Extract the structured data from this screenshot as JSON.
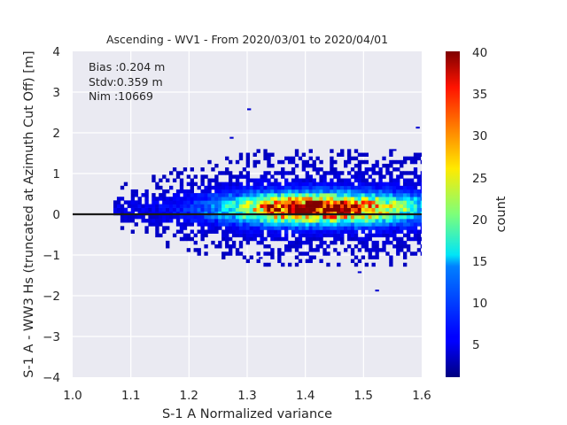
{
  "chart_data": {
    "type": "heatmap",
    "title": "Ascending - WV1 - From 2020/03/01 to 2020/04/01",
    "xlabel": "S-1 A Normalized variance",
    "ylabel": "S-1 A - WW3 Hs (truncated at Azimuth Cut Off) [m]",
    "xlim": [
      1.0,
      1.6
    ],
    "ylim": [
      -4,
      4
    ],
    "xticks": [
      "1.0",
      "1.1",
      "1.2",
      "1.3",
      "1.4",
      "1.5",
      "1.6"
    ],
    "yticks": [
      "4",
      "3",
      "2",
      "1",
      "0",
      "−1",
      "−2",
      "−3",
      "−4"
    ],
    "grid": true,
    "colormap": "jet",
    "colorbar": {
      "label": "count",
      "range": [
        1,
        40
      ],
      "ticks": [
        "5",
        "10",
        "15",
        "20",
        "25",
        "30",
        "35",
        "40"
      ]
    },
    "annotations": [
      "Bias :0.204 m",
      "Stdv:0.359 m",
      "Nim :10669"
    ],
    "reference_line": {
      "y": 0,
      "color": "#1a1a1a"
    },
    "density_core": {
      "y_center": 0.1,
      "y_spread": 0.33,
      "x_peak": 1.42
    }
  }
}
